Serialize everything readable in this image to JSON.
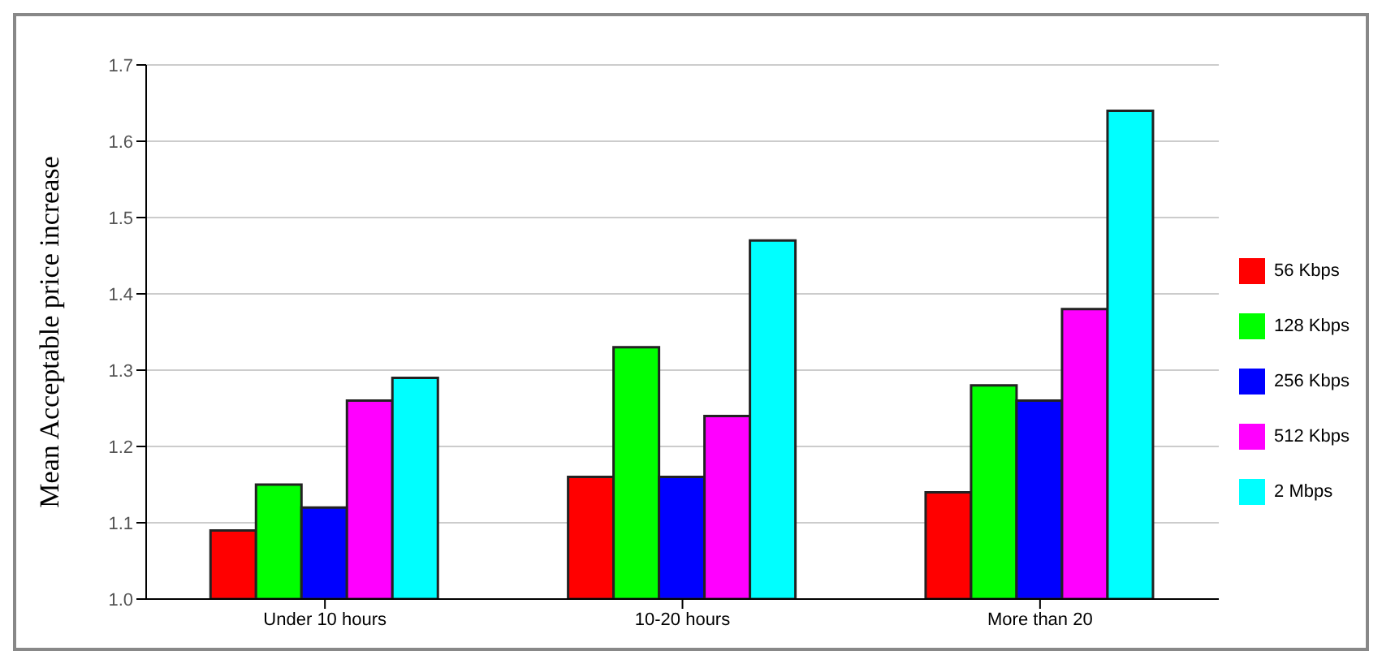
{
  "chart_data": {
    "type": "bar",
    "ylabel": "Mean Acceptable price increase",
    "categories": [
      "Under 10 hours",
      "10-20 hours",
      "More than 20"
    ],
    "series": [
      {
        "name": "56 Kbps",
        "color": "#ff0000",
        "values": [
          1.09,
          1.16,
          1.14
        ]
      },
      {
        "name": "128 Kbps",
        "color": "#00ff00",
        "values": [
          1.15,
          1.33,
          1.28
        ]
      },
      {
        "name": "256 Kbps",
        "color": "#0000ff",
        "values": [
          1.12,
          1.16,
          1.26
        ]
      },
      {
        "name": "512 Kbps",
        "color": "#ff00ff",
        "values": [
          1.26,
          1.24,
          1.38
        ]
      },
      {
        "name": "2 Mbps",
        "color": "#00ffff",
        "values": [
          1.29,
          1.47,
          1.64
        ]
      }
    ],
    "ylim": [
      1.0,
      1.7
    ],
    "yticks": [
      {
        "value": 1,
        "label": "1.0"
      },
      {
        "value": 1.1,
        "label": "1.1"
      },
      {
        "value": 1.2,
        "label": "1.2"
      },
      {
        "value": 1.3,
        "label": "1.3"
      },
      {
        "value": 1.4,
        "label": "1.4"
      },
      {
        "value": 1.5,
        "label": "1.5"
      },
      {
        "value": 1.6,
        "label": "1.6"
      },
      {
        "value": 1.7,
        "label": "1.7"
      }
    ],
    "grid": "y",
    "legend": "right"
  }
}
